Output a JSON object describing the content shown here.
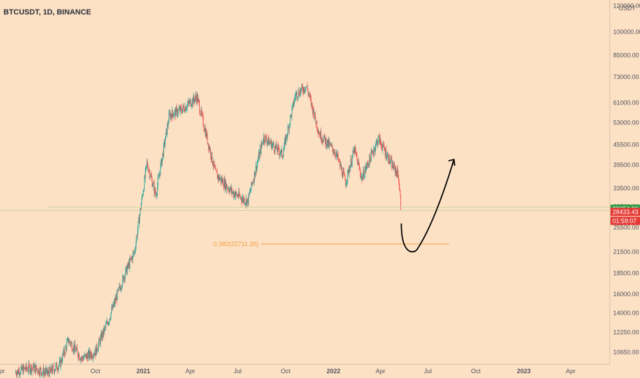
{
  "chart_data": {
    "type": "candlestick",
    "title": "BTCUSDT, 1D, BINANCE",
    "currency_label": "USDT",
    "y_scale": "log",
    "ylim": [
      9800,
      125000
    ],
    "y_ticks": [
      10650,
      12250,
      14000,
      16000,
      18500,
      21500,
      25500,
      29500,
      33500,
      39500,
      45500,
      53000,
      61000,
      73000,
      85000,
      100000,
      120000
    ],
    "y_tick_labels": [
      "10650.00",
      "12250.00",
      "14000.00",
      "16000.00",
      "18500.00",
      "21500.00",
      "25500.00",
      "29500.00",
      "33500.00",
      "39500.00",
      "45500.00",
      "53000.00",
      "61000.00",
      "73000.00",
      "85000.00",
      "100000.00",
      "120000.00"
    ],
    "x_range": [
      "2020-04-01",
      "2023-06-15"
    ],
    "x_ticks": [
      {
        "date": "2020-04-01",
        "label": "Apr"
      },
      {
        "date": "2020-07-01",
        "label": "Jul"
      },
      {
        "date": "2020-10-01",
        "label": "Oct"
      },
      {
        "date": "2021-01-01",
        "label": "2021"
      },
      {
        "date": "2021-04-01",
        "label": "Apr"
      },
      {
        "date": "2021-07-01",
        "label": "Jul"
      },
      {
        "date": "2021-10-01",
        "label": "Oct"
      },
      {
        "date": "2022-01-01",
        "label": "2022"
      },
      {
        "date": "2022-04-01",
        "label": "Apr"
      },
      {
        "date": "2022-07-01",
        "label": "Jul"
      },
      {
        "date": "2022-10-01",
        "label": "Oct"
      },
      {
        "date": "2023-01-01",
        "label": "2023"
      },
      {
        "date": "2023-04-01",
        "label": "Apr"
      }
    ],
    "price_path": [
      {
        "date": "2020-05-01",
        "price": 9300
      },
      {
        "date": "2020-06-01",
        "price": 9600
      },
      {
        "date": "2020-07-01",
        "price": 9200
      },
      {
        "date": "2020-07-25",
        "price": 9800
      },
      {
        "date": "2020-08-10",
        "price": 11600
      },
      {
        "date": "2020-09-05",
        "price": 10200
      },
      {
        "date": "2020-10-01",
        "price": 10700
      },
      {
        "date": "2020-10-25",
        "price": 13200
      },
      {
        "date": "2020-11-25",
        "price": 18200
      },
      {
        "date": "2020-12-15",
        "price": 21500
      },
      {
        "date": "2021-01-08",
        "price": 40000
      },
      {
        "date": "2021-01-25",
        "price": 32000
      },
      {
        "date": "2021-02-20",
        "price": 56000
      },
      {
        "date": "2021-03-15",
        "price": 58000
      },
      {
        "date": "2021-04-14",
        "price": 63500
      },
      {
        "date": "2021-05-20",
        "price": 37000
      },
      {
        "date": "2021-06-22",
        "price": 32500
      },
      {
        "date": "2021-07-20",
        "price": 30500
      },
      {
        "date": "2021-08-20",
        "price": 48000
      },
      {
        "date": "2021-09-25",
        "price": 42500
      },
      {
        "date": "2021-10-20",
        "price": 64500
      },
      {
        "date": "2021-11-10",
        "price": 68500
      },
      {
        "date": "2021-12-05",
        "price": 49000
      },
      {
        "date": "2022-01-05",
        "price": 43000
      },
      {
        "date": "2022-01-24",
        "price": 35000
      },
      {
        "date": "2022-02-10",
        "price": 44000
      },
      {
        "date": "2022-02-24",
        "price": 36000
      },
      {
        "date": "2022-03-28",
        "price": 47500
      },
      {
        "date": "2022-04-25",
        "price": 39000
      },
      {
        "date": "2022-05-05",
        "price": 37000
      },
      {
        "date": "2022-05-11",
        "price": 28433
      }
    ],
    "annotations": {
      "support_zone": {
        "upper": 29400,
        "lower": 28700
      },
      "fib_level": {
        "label": "0.382(22711.30)",
        "price": 22711.3,
        "from": "2021-08-15",
        "to": "2022-08-10"
      },
      "projection": [
        {
          "date": "2022-05-11",
          "price": 26200
        },
        {
          "date": "2022-06-05",
          "price": 22300
        },
        {
          "date": "2022-07-05",
          "price": 26000
        },
        {
          "date": "2022-08-20",
          "price": 41000
        }
      ]
    },
    "price_tags": [
      {
        "value": "29054.96",
        "price": 29054.96,
        "color": "#2ea043"
      },
      {
        "value": "28433.43",
        "price": 28433.43,
        "color": "#e53935"
      },
      {
        "value": "01:59:07",
        "price": 26700,
        "color": "#e53935"
      }
    ],
    "colors": {
      "up": "#26a69a",
      "down": "#ef5350",
      "fib": "#f29f40",
      "support": "#c8d4a0",
      "arrow": "#000000"
    }
  }
}
